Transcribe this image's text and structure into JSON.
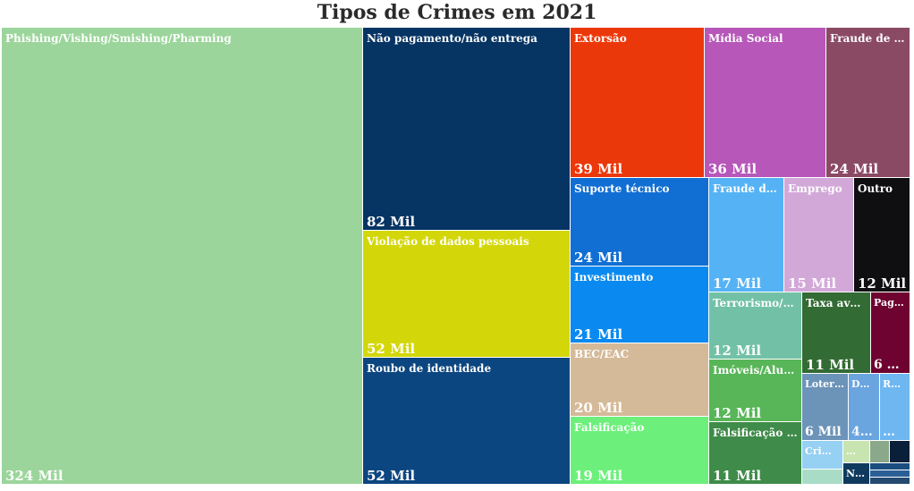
{
  "chart_data": {
    "type": "treemap",
    "title": "Tipos de Crimes em 2021",
    "unit_suffix": "Mil",
    "items": [
      {
        "label": "Phishing/Vishing/Smishing/Pharming",
        "value_label": "324 Mil",
        "value": 324,
        "color": "#9bd59b"
      },
      {
        "label": "Não pagamento/não entrega",
        "value_label": "82 Mil",
        "value": 82,
        "color": "#063463"
      },
      {
        "label": "Extorsão",
        "value_label": "39 Mil",
        "value": 39,
        "color": "#eb380a"
      },
      {
        "label": "Mídia Social",
        "value_label": "36 Mil",
        "value": 36,
        "color": "#b657b9"
      },
      {
        "label": "Fraude de Co…",
        "value_label": "24 Mil",
        "value": 24,
        "color": "#8b4a64"
      },
      {
        "label": "Violação de dados pessoais",
        "value_label": "52 Mil",
        "value": 52,
        "color": "#d3d70a"
      },
      {
        "label": "Roubo de identidade",
        "value_label": "52 Mil",
        "value": 52,
        "color": "#0c4680"
      },
      {
        "label": "Suporte técnico",
        "value_label": "24 Mil",
        "value": 24,
        "color": "#116fd3"
      },
      {
        "label": "Investimento",
        "value_label": "21 Mil",
        "value": 21,
        "color": "#0a8af0"
      },
      {
        "label": "BEC/EAC",
        "value_label": "20 Mil",
        "value": 20,
        "color": "#d5ba99"
      },
      {
        "label": "Falsificação",
        "value_label": "19 Mil",
        "value": 19,
        "color": "#6cf07b"
      },
      {
        "label": "Fraude de c…",
        "value_label": "17 Mil",
        "value": 17,
        "color": "#55b3f5"
      },
      {
        "label": "Emprego",
        "value_label": "15 Mil",
        "value": 15,
        "color": "#d2a8d8"
      },
      {
        "label": "Outro",
        "value_label": "12 Mil",
        "value": 12,
        "color": "#0f0f12"
      },
      {
        "label": "Terrorismo/Ame…",
        "value_label": "12 Mil",
        "value": 12,
        "color": "#72c1a6"
      },
      {
        "label": "Taxa avanç…",
        "value_label": "11 Mil",
        "value": 11,
        "color": "#336b34"
      },
      {
        "label": "Pag…",
        "value_label": "6 …",
        "value": 6,
        "color": "#6e0230"
      },
      {
        "label": "Imóveis/Aluguel",
        "value_label": "12 Mil",
        "value": 12,
        "color": "#58b658"
      },
      {
        "label": "Falsificação de i…",
        "value_label": "11 Mil",
        "value": 11,
        "color": "#3f8b49"
      },
      {
        "label": "Loter…",
        "value_label": "6 Mil",
        "value": 6,
        "color": "#6c93b8"
      },
      {
        "label": "DP…",
        "value_label": "4…",
        "value": 4,
        "color": "#6aa5e0"
      },
      {
        "label": "R…",
        "value_label": "…",
        "value": 3,
        "color": "#6fb7f0"
      },
      {
        "label": "Cri…",
        "value_label": "",
        "value": 3,
        "color": "#96d0f2"
      },
      {
        "label": "…",
        "value_label": "",
        "value": 2,
        "color": "#c8e4b0"
      },
      {
        "label": "",
        "value_label": "",
        "value": 2,
        "color": "#a9dcc7"
      },
      {
        "label": "N…",
        "value_label": "",
        "value": 2,
        "color": "#0f3a5e"
      },
      {
        "label": "",
        "value_label": "",
        "value": 1,
        "color": "#8ba88a"
      },
      {
        "label": "",
        "value_label": "",
        "value": 1,
        "color": "#0a1f3a"
      },
      {
        "label": "",
        "value_label": "",
        "value": 1,
        "color": "#1a4d80"
      },
      {
        "label": "",
        "value_label": "",
        "value": 1,
        "color": "#2a5f96"
      },
      {
        "label": "",
        "value_label": "",
        "value": 1,
        "color": "#254a70"
      }
    ]
  }
}
